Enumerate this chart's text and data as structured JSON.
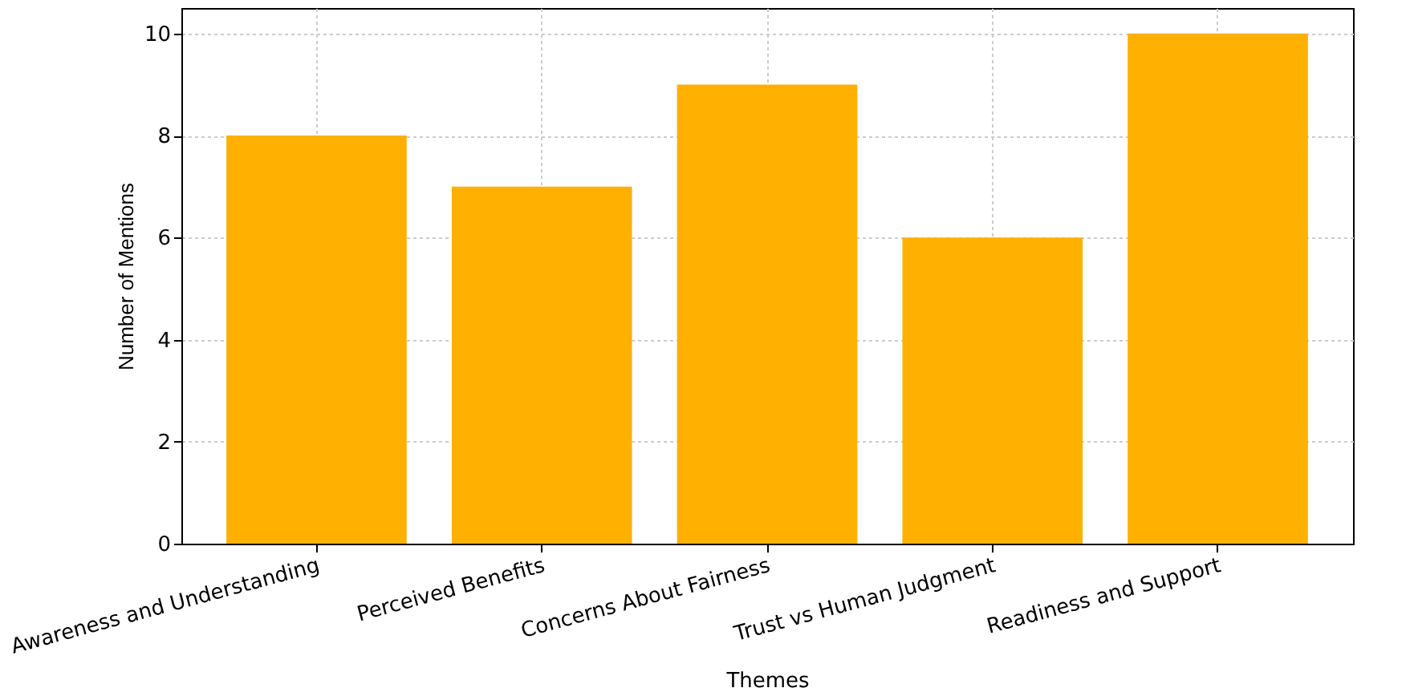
{
  "chart_data": {
    "type": "bar",
    "xlabel": "Themes",
    "ylabel": "Number of Mentions",
    "categories": [
      "Awareness and Understanding",
      "Perceived Benefits",
      "Concerns About Fairness",
      "Trust vs Human Judgment",
      "Readiness and Support"
    ],
    "values": [
      8,
      7,
      9,
      6,
      10
    ],
    "color": "#ffb000",
    "ylim": [
      0,
      10.5
    ],
    "yticks": [
      0,
      2,
      4,
      6,
      8,
      10
    ],
    "grid": true
  }
}
